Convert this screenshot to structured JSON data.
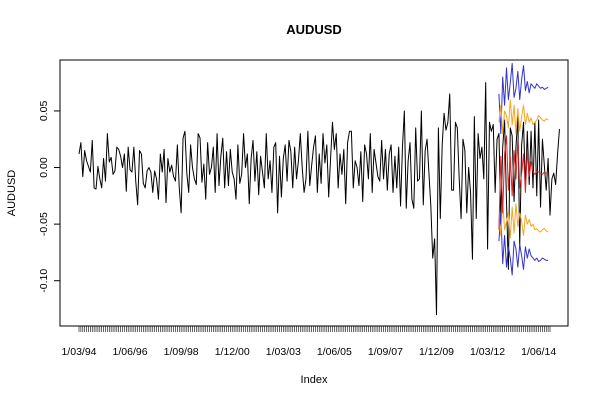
{
  "chart_data": {
    "type": "line",
    "title": "AUDUSD",
    "xlabel": "Index",
    "ylabel": "AUDUSD",
    "grid": false,
    "ylim": [
      -0.14,
      0.095
    ],
    "yticks": [
      {
        "value": -0.1,
        "label": "-0.10"
      },
      {
        "value": -0.05,
        "label": "-0.05"
      },
      {
        "value": 0.0,
        "label": "0.00"
      },
      {
        "value": 0.05,
        "label": "0.05"
      }
    ],
    "xticks": [
      {
        "index": 1,
        "label": "1/03/94"
      },
      {
        "index": 28,
        "label": "1/06/96"
      },
      {
        "index": 55,
        "label": "1/09/98"
      },
      {
        "index": 82,
        "label": "1/12/00"
      },
      {
        "index": 109,
        "label": "1/03/03"
      },
      {
        "index": 136,
        "label": "1/06/05"
      },
      {
        "index": 163,
        "label": "1/09/07"
      },
      {
        "index": 190,
        "label": "1/12/09"
      },
      {
        "index": 217,
        "label": "1/03/12"
      },
      {
        "index": 244,
        "label": "1/06/14"
      }
    ],
    "x_count": 250,
    "colors": {
      "history": "#000000",
      "forecast": "#d62728",
      "inner_band": "#f5a623",
      "outer_band": "#3333cc"
    },
    "series": [
      {
        "role": "history",
        "start_index": 1,
        "values": [
          0.012,
          0.022,
          -0.008,
          0.015,
          0.006,
          0.001,
          -0.004,
          0.024,
          -0.018,
          -0.019,
          0.001,
          -0.01,
          -0.018,
          0.008,
          -0.012,
          0.03,
          0.005,
          0.009,
          -0.006,
          -0.003,
          0.018,
          0.016,
          0.01,
          0.0,
          0.012,
          -0.021,
          0.018,
          -0.002,
          -0.004,
          0.018,
          -0.012,
          -0.033,
          0.015,
          0.012,
          -0.014,
          -0.018,
          -0.003,
          0.0,
          -0.004,
          -0.022,
          -0.003,
          -0.01,
          -0.028,
          0.012,
          -0.004,
          0.016,
          -0.031,
          0.008,
          -0.004,
          0.002,
          -0.008,
          -0.012,
          0.02,
          -0.018,
          -0.04,
          0.026,
          0.032,
          -0.005,
          -0.022,
          0.02,
          0.0,
          -0.01,
          -0.015,
          0.03,
          0.026,
          -0.013,
          0.003,
          -0.028,
          0.022,
          -0.006,
          0.0,
          0.018,
          -0.022,
          0.03,
          -0.016,
          0.01,
          0.026,
          -0.018,
          0.014,
          -0.016,
          0.016,
          -0.004,
          -0.01,
          -0.028,
          0.02,
          -0.014,
          -0.006,
          0.03,
          0.0,
          0.012,
          -0.032,
          0.008,
          0.024,
          -0.012,
          0.014,
          -0.024,
          0.01,
          -0.004,
          -0.018,
          0.03,
          -0.01,
          0.006,
          -0.022,
          0.018,
          0.022,
          -0.04,
          0.01,
          -0.026,
          0.008,
          0.02,
          -0.012,
          0.024,
          0.014,
          -0.018,
          0.018,
          -0.01,
          0.006,
          0.03,
          0.0,
          -0.022,
          -0.01,
          0.032,
          -0.016,
          0.002,
          0.018,
          0.028,
          -0.022,
          0.012,
          -0.014,
          0.03,
          0.004,
          0.02,
          -0.026,
          0.008,
          0.04,
          0.016,
          0.03,
          -0.018,
          0.012,
          -0.006,
          0.016,
          -0.032,
          0.022,
          0.032,
          0.032,
          -0.018,
          0.006,
          0.0,
          -0.016,
          0.014,
          -0.03,
          0.02,
          0.012,
          -0.01,
          0.03,
          -0.022,
          0.016,
          0.004,
          -0.008,
          -0.012,
          0.024,
          -0.01,
          0.016,
          -0.02,
          0.012,
          0.02,
          -0.022,
          0.01,
          -0.018,
          0.018,
          -0.034,
          0.018,
          0.05,
          -0.036,
          0.006,
          0.022,
          -0.028,
          -0.036,
          0.035,
          -0.012,
          -0.01,
          0.05,
          -0.033,
          0.015,
          0.025,
          -0.005,
          -0.034,
          -0.08,
          -0.063,
          -0.13,
          0.035,
          -0.045,
          0.02,
          0.048,
          0.033,
          0.04,
          0.065,
          -0.02,
          -0.02,
          0.04,
          0.035,
          -0.01,
          -0.045,
          0.025,
          0.015,
          -0.04,
          0.0,
          -0.022,
          -0.081,
          0.045,
          -0.045,
          0.03,
          0.008,
          0.018,
          -0.01,
          0.075,
          -0.072,
          0.04,
          0.032,
          0.038,
          -0.022,
          0.025,
          0.03,
          -0.045,
          0.018,
          0.042,
          -0.03,
          -0.09,
          0.035,
          0.028,
          -0.03,
          0.018,
          0.045,
          -0.07,
          0.02,
          0.04,
          -0.018,
          0.032,
          -0.015,
          0.032,
          -0.018,
          0.04,
          -0.025,
          0.042,
          -0.035,
          0.025,
          0.002,
          -0.02,
          0.008,
          -0.042,
          -0.01,
          -0.005,
          -0.015,
          0.012,
          0.034
        ]
      },
      {
        "role": "forecast",
        "start_index": 223,
        "values": [
          -0.055,
          0.01,
          -0.04,
          0.012,
          0.028,
          -0.02,
          0.01,
          -0.025,
          0.015,
          -0.01,
          0.025,
          -0.018,
          -0.005,
          0.012,
          -0.022,
          0.015,
          -0.008,
          0.005,
          -0.004,
          -0.006,
          -0.003,
          -0.004,
          -0.005,
          -0.006,
          -0.004,
          -0.005,
          -0.006
        ]
      },
      {
        "role": "inner_upper",
        "start_index": 223,
        "values": [
          0.04,
          0.055,
          0.03,
          0.05,
          0.046,
          0.035,
          0.06,
          0.038,
          0.055,
          0.03,
          0.052,
          0.032,
          0.045,
          0.055,
          0.038,
          0.048,
          0.04,
          0.044,
          0.038,
          0.04,
          0.042,
          0.046,
          0.044,
          0.042,
          0.041,
          0.043,
          0.042
        ]
      },
      {
        "role": "inner_lower",
        "start_index": 223,
        "values": [
          -0.045,
          -0.06,
          -0.03,
          -0.055,
          -0.048,
          -0.04,
          -0.062,
          -0.035,
          -0.058,
          -0.032,
          -0.052,
          -0.04,
          -0.048,
          -0.06,
          -0.042,
          -0.05,
          -0.046,
          -0.052,
          -0.05,
          -0.055,
          -0.054,
          -0.056,
          -0.057,
          -0.055,
          -0.054,
          -0.056,
          -0.057
        ]
      },
      {
        "role": "outer_upper",
        "start_index": 223,
        "values": [
          0.065,
          0.03,
          0.08,
          0.055,
          0.088,
          0.06,
          0.075,
          0.092,
          0.062,
          0.07,
          0.085,
          0.06,
          0.078,
          0.09,
          0.068,
          0.076,
          0.066,
          0.074,
          0.072,
          0.07,
          0.074,
          0.072,
          0.07,
          0.071,
          0.069,
          0.07,
          0.071
        ]
      },
      {
        "role": "outer_lower",
        "start_index": 223,
        "values": [
          -0.065,
          -0.04,
          -0.085,
          -0.06,
          -0.088,
          -0.07,
          -0.08,
          -0.095,
          -0.065,
          -0.072,
          -0.088,
          -0.068,
          -0.078,
          -0.09,
          -0.07,
          -0.08,
          -0.072,
          -0.078,
          -0.08,
          -0.082,
          -0.08,
          -0.083,
          -0.082,
          -0.08,
          -0.081,
          -0.082,
          -0.082
        ]
      }
    ]
  }
}
